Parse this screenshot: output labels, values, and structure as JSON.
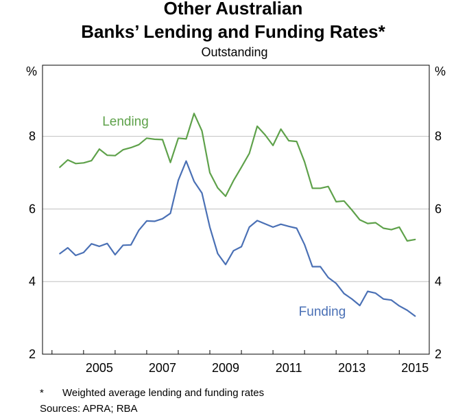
{
  "chart_data": {
    "type": "line",
    "title_line1": "Other Australian",
    "title_line2": "Banks’ Lending and Funding Rates*",
    "subtitle": "Outstanding",
    "y_unit_left": "%",
    "y_unit_right": "%",
    "ylim": [
      2,
      9.96
    ],
    "y_ticks": [
      "2",
      "4",
      "6",
      "8"
    ],
    "x_tick_labels": [
      "2005",
      "2007",
      "2009",
      "2011",
      "2013",
      "2015"
    ],
    "x_tick_positions": [
      2005,
      2007,
      2009,
      2011,
      2013,
      2015
    ],
    "xlim": [
      2003.7,
      2015.95
    ],
    "grid": true,
    "colors": {
      "lending": "#5ea14a",
      "funding": "#4a70b5",
      "grid": "#c0c0c0"
    },
    "x": [
      2004.25,
      2004.5,
      2004.75,
      2005.0,
      2005.25,
      2005.5,
      2005.75,
      2006.0,
      2006.25,
      2006.5,
      2006.75,
      2007.0,
      2007.25,
      2007.5,
      2007.75,
      2008.0,
      2008.25,
      2008.5,
      2008.75,
      2009.0,
      2009.25,
      2009.5,
      2009.75,
      2010.0,
      2010.25,
      2010.5,
      2010.75,
      2011.0,
      2011.25,
      2011.5,
      2011.75,
      2012.0,
      2012.25,
      2012.5,
      2012.75,
      2013.0,
      2013.25,
      2013.5,
      2013.75,
      2014.0,
      2014.25,
      2014.5,
      2014.75,
      2015.0,
      2015.25,
      2015.5
    ],
    "series": [
      {
        "name": "Lending",
        "values": [
          7.15,
          7.35,
          7.25,
          7.27,
          7.33,
          7.65,
          7.48,
          7.47,
          7.63,
          7.69,
          7.77,
          7.95,
          7.92,
          7.91,
          7.28,
          7.95,
          7.93,
          8.63,
          8.15,
          7.0,
          6.58,
          6.35,
          6.78,
          7.15,
          7.53,
          8.28,
          8.04,
          7.75,
          8.2,
          7.88,
          7.86,
          7.3,
          6.57,
          6.57,
          6.62,
          6.2,
          6.22,
          5.97,
          5.7,
          5.6,
          5.62,
          5.47,
          5.43,
          5.5,
          5.12,
          5.16
        ]
      },
      {
        "name": "Funding",
        "values": [
          4.77,
          4.93,
          4.72,
          4.8,
          5.04,
          4.97,
          5.05,
          4.74,
          5.0,
          5.01,
          5.41,
          5.67,
          5.66,
          5.73,
          5.88,
          6.79,
          7.32,
          6.76,
          6.44,
          5.5,
          4.77,
          4.47,
          4.85,
          4.96,
          5.5,
          5.68,
          5.59,
          5.5,
          5.58,
          5.52,
          5.47,
          5.02,
          4.41,
          4.41,
          4.11,
          3.95,
          3.67,
          3.52,
          3.34,
          3.73,
          3.68,
          3.52,
          3.49,
          3.33,
          3.21,
          3.05
        ]
      }
    ],
    "annotations": [
      {
        "text": "Lending",
        "series": "Lending"
      },
      {
        "text": "Funding",
        "series": "Funding"
      }
    ],
    "footnote_marker": "*",
    "footnote_text": "Weighted average lending and funding rates",
    "sources": "Sources:   APRA; RBA"
  }
}
